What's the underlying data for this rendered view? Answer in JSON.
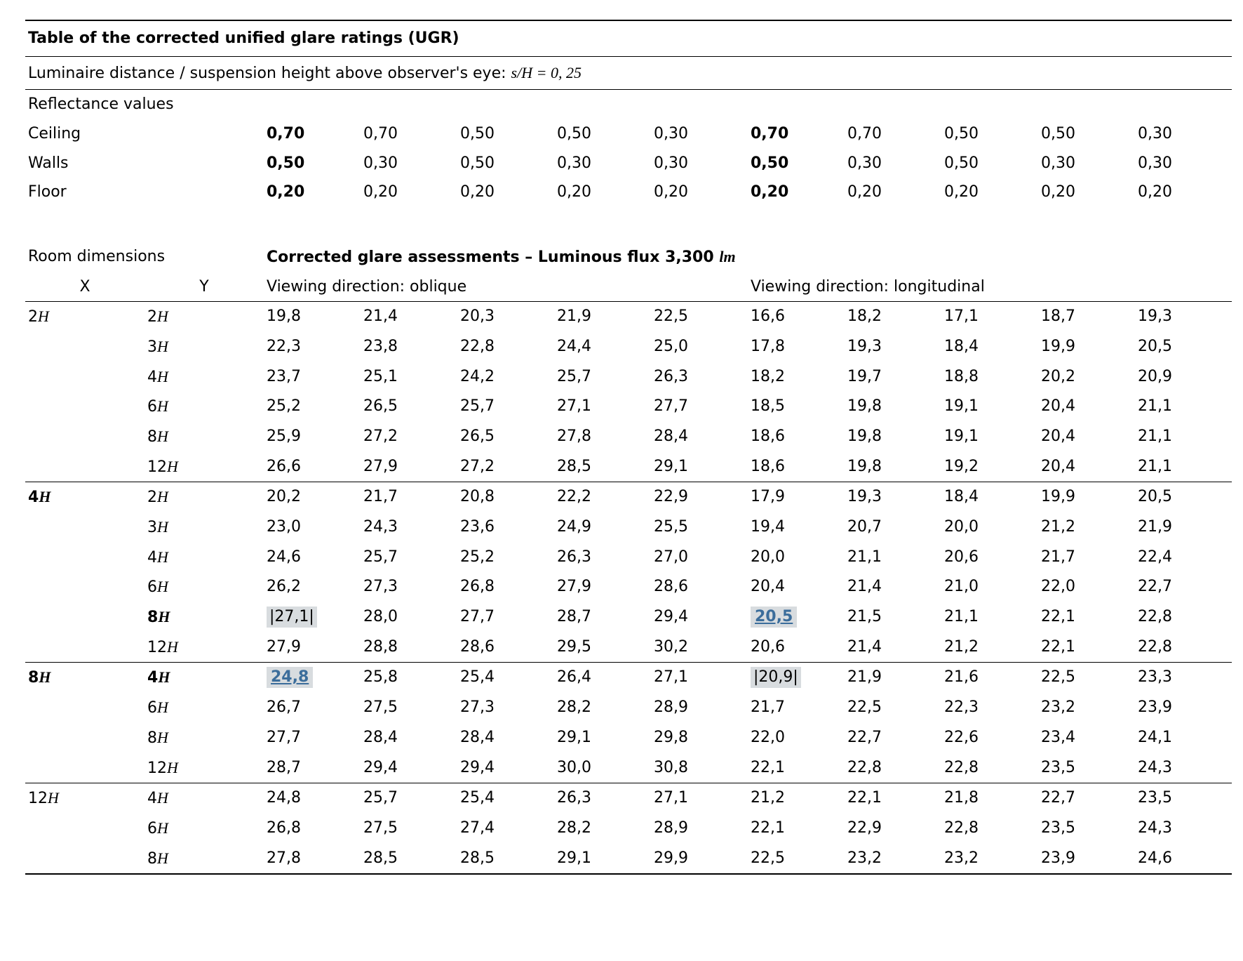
{
  "header": {
    "title": "Table of the corrected unified glare ratings (UGR)",
    "subtitle_prefix": "Luminaire distance / suspension height above observer's eye: ",
    "subtitle_math": "s/H = 0, 25"
  },
  "reflectance": {
    "label": "Reflectance values",
    "rows": [
      {
        "name": "Ceiling",
        "vals": [
          "0,70",
          "0,70",
          "0,50",
          "0,50",
          "0,30",
          "0,70",
          "0,70",
          "0,50",
          "0,50",
          "0,30"
        ],
        "bold_idx": [
          0,
          5
        ]
      },
      {
        "name": "Walls",
        "vals": [
          "0,50",
          "0,30",
          "0,50",
          "0,30",
          "0,30",
          "0,50",
          "0,30",
          "0,50",
          "0,30",
          "0,30"
        ],
        "bold_idx": [
          0,
          5
        ]
      },
      {
        "name": "Floor",
        "vals": [
          "0,20",
          "0,20",
          "0,20",
          "0,20",
          "0,20",
          "0,20",
          "0,20",
          "0,20",
          "0,20",
          "0,20"
        ],
        "bold_idx": [
          0,
          5
        ]
      }
    ]
  },
  "glare": {
    "room_dim_label": "Room dimensions",
    "section_title_prefix": "Corrected glare assessments – Luminous flux 3,300 ",
    "section_title_unit": "lm",
    "x_label": "X",
    "y_label": "Y",
    "view_oblique": "Viewing direction: oblique",
    "view_long": "Viewing direction: longitudinal"
  },
  "groups": [
    {
      "x": "2H",
      "x_bold": false,
      "rows": [
        {
          "y": "2H",
          "v": [
            "19,8",
            "21,4",
            "20,3",
            "21,9",
            "22,5",
            "16,6",
            "18,2",
            "17,1",
            "18,7",
            "19,3"
          ]
        },
        {
          "y": "3H",
          "v": [
            "22,3",
            "23,8",
            "22,8",
            "24,4",
            "25,0",
            "17,8",
            "19,3",
            "18,4",
            "19,9",
            "20,5"
          ]
        },
        {
          "y": "4H",
          "v": [
            "23,7",
            "25,1",
            "24,2",
            "25,7",
            "26,3",
            "18,2",
            "19,7",
            "18,8",
            "20,2",
            "20,9"
          ]
        },
        {
          "y": "6H",
          "v": [
            "25,2",
            "26,5",
            "25,7",
            "27,1",
            "27,7",
            "18,5",
            "19,8",
            "19,1",
            "20,4",
            "21,1"
          ]
        },
        {
          "y": "8H",
          "v": [
            "25,9",
            "27,2",
            "26,5",
            "27,8",
            "28,4",
            "18,6",
            "19,8",
            "19,1",
            "20,4",
            "21,1"
          ]
        },
        {
          "y": "12H",
          "v": [
            "26,6",
            "27,9",
            "27,2",
            "28,5",
            "29,1",
            "18,6",
            "19,8",
            "19,2",
            "20,4",
            "21,1"
          ]
        }
      ]
    },
    {
      "x": "4H",
      "x_bold": true,
      "rows": [
        {
          "y": "2H",
          "v": [
            "20,2",
            "21,7",
            "20,8",
            "22,2",
            "22,9",
            "17,9",
            "19,3",
            "18,4",
            "19,9",
            "20,5"
          ]
        },
        {
          "y": "3H",
          "v": [
            "23,0",
            "24,3",
            "23,6",
            "24,9",
            "25,5",
            "19,4",
            "20,7",
            "20,0",
            "21,2",
            "21,9"
          ]
        },
        {
          "y": "4H",
          "v": [
            "24,6",
            "25,7",
            "25,2",
            "26,3",
            "27,0",
            "20,0",
            "21,1",
            "20,6",
            "21,7",
            "22,4"
          ]
        },
        {
          "y": "6H",
          "v": [
            "26,2",
            "27,3",
            "26,8",
            "27,9",
            "28,6",
            "20,4",
            "21,4",
            "21,0",
            "22,0",
            "22,7"
          ]
        },
        {
          "y": "8H",
          "y_bold": true,
          "v": [
            "|27,1|",
            "28,0",
            "27,7",
            "28,7",
            "29,4",
            "20,5",
            "21,5",
            "21,1",
            "22,1",
            "22,8"
          ],
          "styles": {
            "0": "box",
            "5": "hl"
          }
        },
        {
          "y": "12H",
          "v": [
            "27,9",
            "28,8",
            "28,6",
            "29,5",
            "30,2",
            "20,6",
            "21,4",
            "21,2",
            "22,1",
            "22,8"
          ]
        }
      ]
    },
    {
      "x": "8H",
      "x_bold": true,
      "rows": [
        {
          "y": "4H",
          "y_bold": true,
          "v": [
            "24,8",
            "25,8",
            "25,4",
            "26,4",
            "27,1",
            "|20,9|",
            "21,9",
            "21,6",
            "22,5",
            "23,3"
          ],
          "styles": {
            "0": "hl",
            "5": "box"
          }
        },
        {
          "y": "6H",
          "v": [
            "26,7",
            "27,5",
            "27,3",
            "28,2",
            "28,9",
            "21,7",
            "22,5",
            "22,3",
            "23,2",
            "23,9"
          ]
        },
        {
          "y": "8H",
          "v": [
            "27,7",
            "28,4",
            "28,4",
            "29,1",
            "29,8",
            "22,0",
            "22,7",
            "22,6",
            "23,4",
            "24,1"
          ]
        },
        {
          "y": "12H",
          "v": [
            "28,7",
            "29,4",
            "29,4",
            "30,0",
            "30,8",
            "22,1",
            "22,8",
            "22,8",
            "23,5",
            "24,3"
          ]
        }
      ]
    },
    {
      "x": "12H",
      "x_bold": false,
      "rows": [
        {
          "y": "4H",
          "v": [
            "24,8",
            "25,7",
            "25,4",
            "26,3",
            "27,1",
            "21,2",
            "22,1",
            "21,8",
            "22,7",
            "23,5"
          ]
        },
        {
          "y": "6H",
          "v": [
            "26,8",
            "27,5",
            "27,4",
            "28,2",
            "28,9",
            "22,1",
            "22,9",
            "22,8",
            "23,5",
            "24,3"
          ]
        },
        {
          "y": "8H",
          "v": [
            "27,8",
            "28,5",
            "28,5",
            "29,1",
            "29,9",
            "22,5",
            "23,2",
            "23,2",
            "23,9",
            "24,6"
          ]
        }
      ]
    }
  ],
  "colors": {
    "text": "#000000",
    "bg": "#ffffff",
    "hl_bg": "#d8dcdf",
    "hl_text": "#3b6d9b",
    "rule": "#000000"
  }
}
